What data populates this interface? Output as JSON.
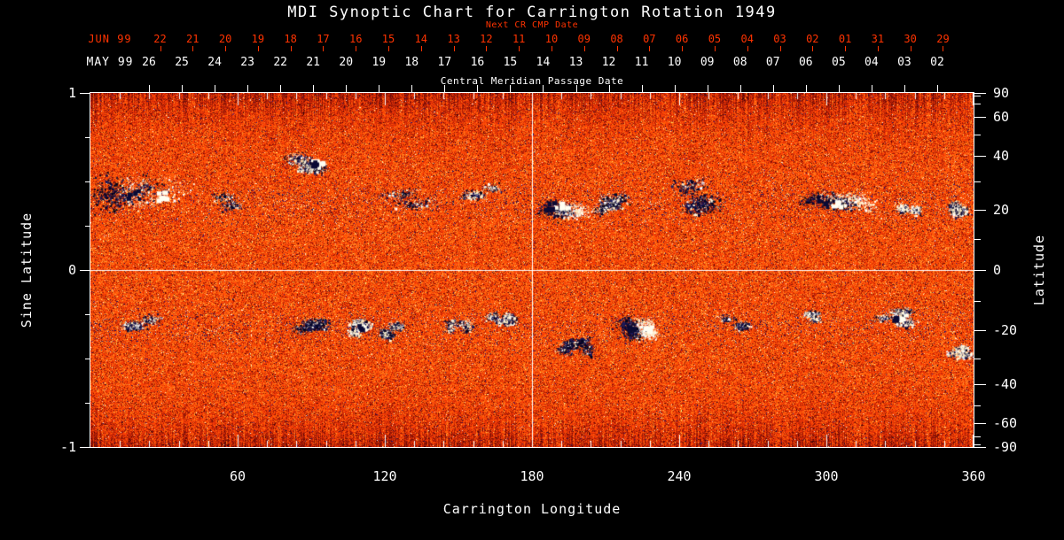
{
  "title": "MDI Synoptic Chart for Carrington Rotation 1949",
  "top_axis": {
    "next_cr_label": "Next CR CMP Date",
    "next_cr_month": "JUN 99",
    "next_cr_dates": [
      "22",
      "21",
      "20",
      "19",
      "18",
      "17",
      "16",
      "15",
      "14",
      "13",
      "12",
      "11",
      "10",
      "09",
      "08",
      "07",
      "06",
      "05",
      "04",
      "03",
      "02",
      "01",
      "31",
      "30",
      "29"
    ],
    "cmp_month": "MAY 99",
    "cmp_dates": [
      "26",
      "25",
      "24",
      "23",
      "22",
      "21",
      "20",
      "19",
      "18",
      "17",
      "16",
      "15",
      "14",
      "13",
      "12",
      "11",
      "10",
      "09",
      "08",
      "07",
      "06",
      "05",
      "04",
      "03",
      "02"
    ],
    "cmp_label": "Central Meridian Passage Date"
  },
  "axes": {
    "left": {
      "label": "Sine Latitude"
    },
    "right": {
      "label": "Latitude"
    },
    "bottom": {
      "label": "Carrington Longitude"
    }
  },
  "colors": {
    "background": "#000000",
    "frame": "#ffffff",
    "text": "#ffffff",
    "date_red": "#ff3300",
    "map_base_orange": "#e8480c",
    "negative_polarity_dark": "#11114a",
    "positive_polarity_light": "#fff6e0"
  },
  "chart_data": {
    "type": "heatmap",
    "title": "MDI Synoptic Chart for Carrington Rotation 1949",
    "xlabel": "Carrington Longitude",
    "ylabel_left": "Sine Latitude",
    "ylabel_right": "Latitude",
    "xlim": [
      0,
      360
    ],
    "ylim_sine_latitude": [
      -1,
      1
    ],
    "x_ticks": [
      60,
      120,
      180,
      240,
      300,
      360
    ],
    "left_ticks": [
      1,
      0,
      -1
    ],
    "right_ticks_latitude_deg": [
      90,
      60,
      40,
      20,
      0,
      -20,
      -40,
      -60,
      -90
    ],
    "right_minor_ticks_latitude_deg": [
      80,
      70,
      50,
      30,
      10,
      -10,
      -30,
      -50,
      -70,
      -80
    ],
    "reference_lines": {
      "vertical_lon": 180,
      "horizontal_sine_lat": 0
    },
    "field_description": "full-disk magnetic field synoptic map: weak mixed-polarity orange noise background, dark-navy negative and white positive active regions in two activity belts near +/-20 deg latitude",
    "active_regions": [
      {
        "lon": 23,
        "sin_lat": 0.42,
        "lon_extent": 34,
        "lat_extent": 0.22,
        "strength": 1.0,
        "white_frac": 0.35,
        "sep": true,
        "core": true
      },
      {
        "lon": 57,
        "sin_lat": 0.38,
        "lon_extent": 16,
        "lat_extent": 0.1,
        "strength": 0.3,
        "white_frac": 0.3,
        "sep": false,
        "core": false
      },
      {
        "lon": 93,
        "sin_lat": 0.6,
        "lon_extent": 24,
        "lat_extent": 0.13,
        "strength": 0.9,
        "white_frac": 0.4,
        "sep": false,
        "core": true
      },
      {
        "lon": 130,
        "sin_lat": 0.4,
        "lon_extent": 24,
        "lat_extent": 0.12,
        "strength": 0.3,
        "white_frac": 0.3,
        "sep": false,
        "core": false
      },
      {
        "lon": 160,
        "sin_lat": 0.45,
        "lon_extent": 16,
        "lat_extent": 0.1,
        "strength": 0.35,
        "white_frac": 0.5,
        "sep": false,
        "core": false
      },
      {
        "lon": 190,
        "sin_lat": 0.36,
        "lon_extent": 18,
        "lat_extent": 0.14,
        "strength": 0.85,
        "white_frac": 0.5,
        "sep": true,
        "core": true
      },
      {
        "lon": 213,
        "sin_lat": 0.38,
        "lon_extent": 16,
        "lat_extent": 0.12,
        "strength": 0.8,
        "white_frac": 0.35,
        "sep": false,
        "core": false
      },
      {
        "lon": 251,
        "sin_lat": 0.41,
        "lon_extent": 26,
        "lat_extent": 0.18,
        "strength": 0.9,
        "white_frac": 0.15,
        "sep": false,
        "core": false
      },
      {
        "lon": 302,
        "sin_lat": 0.37,
        "lon_extent": 26,
        "lat_extent": 0.16,
        "strength": 1.0,
        "white_frac": 0.5,
        "sep": true,
        "core": true
      },
      {
        "lon": 333,
        "sin_lat": 0.33,
        "lon_extent": 10,
        "lat_extent": 0.08,
        "strength": 0.5,
        "white_frac": 0.8,
        "sep": false,
        "core": false
      },
      {
        "lon": 352,
        "sin_lat": 0.35,
        "lon_extent": 12,
        "lat_extent": 0.1,
        "strength": 0.6,
        "white_frac": 0.45,
        "sep": false,
        "core": false
      },
      {
        "lon": 22,
        "sin_lat": -0.3,
        "lon_extent": 18,
        "lat_extent": 0.1,
        "strength": 0.55,
        "white_frac": 0.4,
        "sep": false,
        "core": false
      },
      {
        "lon": 90,
        "sin_lat": -0.32,
        "lon_extent": 14,
        "lat_extent": 0.1,
        "strength": 0.7,
        "white_frac": 0.2,
        "sep": false,
        "core": false
      },
      {
        "lon": 111,
        "sin_lat": -0.33,
        "lon_extent": 12,
        "lat_extent": 0.1,
        "strength": 0.7,
        "white_frac": 0.7,
        "sep": false,
        "core": true
      },
      {
        "lon": 124,
        "sin_lat": -0.35,
        "lon_extent": 12,
        "lat_extent": 0.1,
        "strength": 0.7,
        "white_frac": 0.35,
        "sep": false,
        "core": false
      },
      {
        "lon": 150,
        "sin_lat": -0.31,
        "lon_extent": 10,
        "lat_extent": 0.08,
        "strength": 0.35,
        "white_frac": 0.5,
        "sep": false,
        "core": false
      },
      {
        "lon": 167,
        "sin_lat": -0.28,
        "lon_extent": 12,
        "lat_extent": 0.08,
        "strength": 0.6,
        "white_frac": 0.55,
        "sep": false,
        "core": false
      },
      {
        "lon": 198,
        "sin_lat": -0.44,
        "lon_extent": 14,
        "lat_extent": 0.12,
        "strength": 0.75,
        "white_frac": 0.2,
        "sep": false,
        "core": false
      },
      {
        "lon": 224,
        "sin_lat": -0.34,
        "lon_extent": 20,
        "lat_extent": 0.16,
        "strength": 0.95,
        "white_frac": 0.45,
        "sep": true,
        "core": true
      },
      {
        "lon": 262,
        "sin_lat": -0.3,
        "lon_extent": 16,
        "lat_extent": 0.08,
        "strength": 0.4,
        "white_frac": 0.25,
        "sep": false,
        "core": false
      },
      {
        "lon": 295,
        "sin_lat": -0.26,
        "lon_extent": 10,
        "lat_extent": 0.07,
        "strength": 0.45,
        "white_frac": 0.5,
        "sep": false,
        "core": false
      },
      {
        "lon": 330,
        "sin_lat": -0.27,
        "lon_extent": 18,
        "lat_extent": 0.1,
        "strength": 0.7,
        "white_frac": 0.55,
        "sep": false,
        "core": true
      },
      {
        "lon": 354,
        "sin_lat": -0.46,
        "lon_extent": 12,
        "lat_extent": 0.08,
        "strength": 0.5,
        "white_frac": 0.75,
        "sep": false,
        "core": false
      }
    ]
  }
}
